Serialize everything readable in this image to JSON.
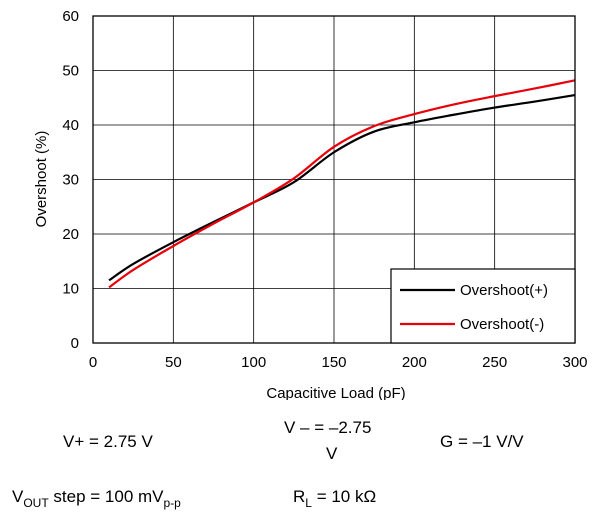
{
  "chart_data": {
    "type": "line",
    "xlabel": "Capacitive Load (pF)",
    "ylabel": "Overshoot (%)",
    "xlim": [
      0,
      300
    ],
    "ylim": [
      0,
      60
    ],
    "xticks": [
      "0",
      "50",
      "100",
      "150",
      "200",
      "250",
      "300"
    ],
    "yticks": [
      "0",
      "10",
      "20",
      "30",
      "40",
      "50",
      "60"
    ],
    "grid": true,
    "legend_position": "bottom-right",
    "series": [
      {
        "name": "Overshoot(+)",
        "color": "#000000",
        "x": [
          10,
          25,
          50,
          75,
          100,
          125,
          150,
          175,
          200,
          225,
          250,
          275,
          300
        ],
        "y": [
          11.5,
          14.5,
          18.5,
          22.2,
          25.8,
          29.5,
          35.0,
          38.8,
          40.5,
          41.9,
          43.2,
          44.3,
          45.5
        ]
      },
      {
        "name": "Overshoot(-)",
        "color": "#e8000b",
        "x": [
          10,
          25,
          50,
          75,
          100,
          125,
          150,
          175,
          200,
          225,
          250,
          275,
          300
        ],
        "y": [
          10.2,
          13.4,
          17.8,
          21.9,
          25.8,
          30.2,
          36.0,
          39.8,
          42.0,
          43.8,
          45.3,
          46.7,
          48.2
        ]
      }
    ]
  },
  "conditions": {
    "vplus": "V+ = 2.75 V",
    "vminus_line1": "V – = –2.75",
    "vminus_line2": "V",
    "gain": "G = –1 V/V",
    "vout_main": "V",
    "vout_sub": "OUT",
    "vout_mid": " step = 100 mV",
    "vout_sub2": "p-p",
    "rl_main": "R",
    "rl_sub": "L",
    "rl_rest": " = 10 kΩ"
  }
}
